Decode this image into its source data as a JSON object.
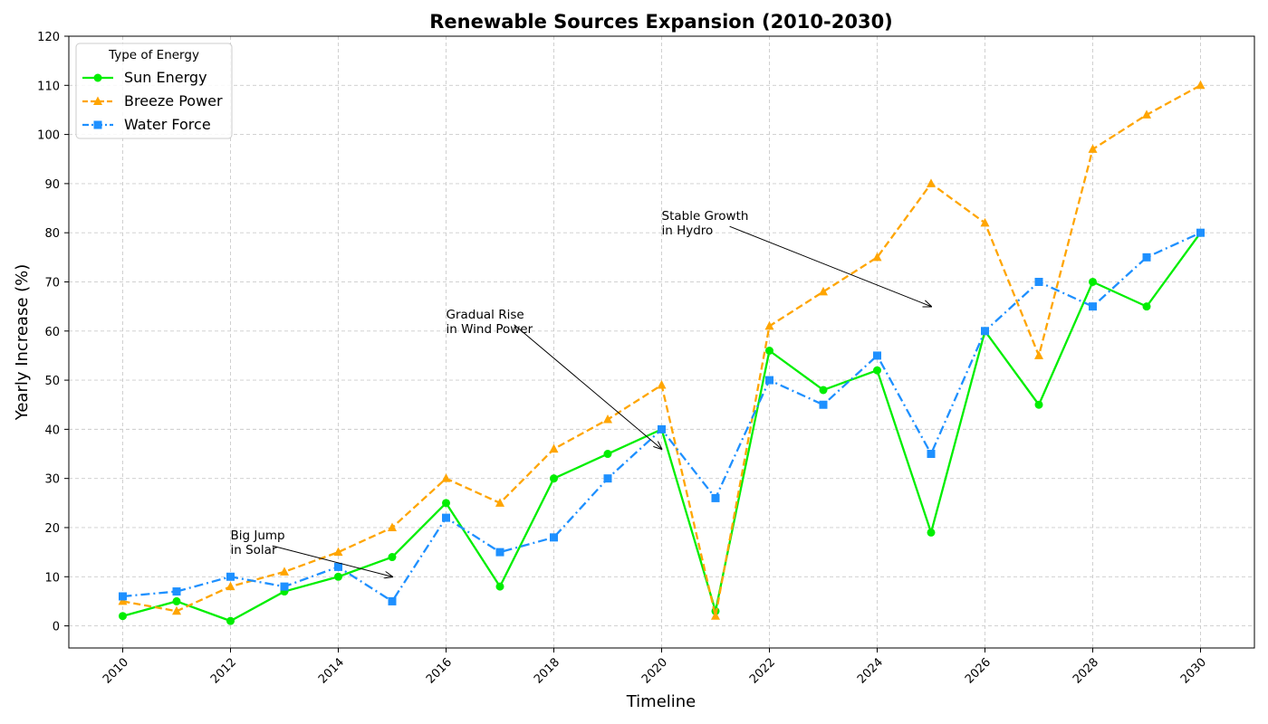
{
  "chart_data": {
    "type": "line",
    "title": "Renewable Sources Expansion (2010-2030)",
    "xlabel": "Timeline",
    "ylabel": "Yearly Increase (%)",
    "xlim": [
      2009,
      2031.0
    ],
    "ylim": [
      -4.5,
      120
    ],
    "x_ticks": [
      2010,
      2012,
      2014,
      2016,
      2018,
      2020,
      2022,
      2024,
      2026,
      2028,
      2030
    ],
    "y_ticks": [
      0,
      10,
      20,
      30,
      40,
      50,
      60,
      70,
      80,
      90,
      100,
      110,
      120
    ],
    "grid": true,
    "legend": {
      "title": "Type of Energy",
      "placement": "top-left"
    },
    "x": [
      2010,
      2011,
      2012,
      2013,
      2014,
      2015,
      2016,
      2017,
      2018,
      2019,
      2020,
      2021,
      2022,
      2023,
      2024,
      2025,
      2026,
      2027,
      2028,
      2029,
      2030
    ],
    "series": [
      {
        "name": "Sun Energy",
        "color": "#00ee00",
        "marker": "circle",
        "dash": "solid",
        "values": [
          2,
          5,
          1,
          7,
          10,
          14,
          25,
          8,
          30,
          35,
          40,
          3,
          56,
          48,
          52,
          19,
          60,
          45,
          70,
          65,
          80
        ]
      },
      {
        "name": "Breeze Power",
        "color": "#ffa500",
        "marker": "triangle",
        "dash": "dashed",
        "values": [
          5,
          3,
          8,
          11,
          15,
          20,
          30,
          25,
          36,
          42,
          49,
          2,
          61,
          68,
          75,
          90,
          82,
          55,
          97,
          104,
          110
        ]
      },
      {
        "name": "Water Force",
        "color": "#1e90ff",
        "marker": "square",
        "dash": "dashdot",
        "values": [
          6,
          7,
          10,
          8,
          12,
          5,
          22,
          15,
          18,
          30,
          40,
          26,
          50,
          45,
          55,
          35,
          60,
          70,
          65,
          75,
          80
        ]
      }
    ],
    "annotations": [
      {
        "lines": [
          "Big Jump",
          "in Solar"
        ],
        "text_x": 2012,
        "text_y": 15,
        "target_x": 2015,
        "target_y": 10
      },
      {
        "lines": [
          "Gradual Rise",
          "in Wind Power"
        ],
        "text_x": 2016,
        "text_y": 60,
        "target_x": 2020,
        "target_y": 36
      },
      {
        "lines": [
          "Stable Growth",
          "in Hydro"
        ],
        "text_x": 2020,
        "text_y": 80,
        "target_x": 2025,
        "target_y": 65
      }
    ]
  }
}
